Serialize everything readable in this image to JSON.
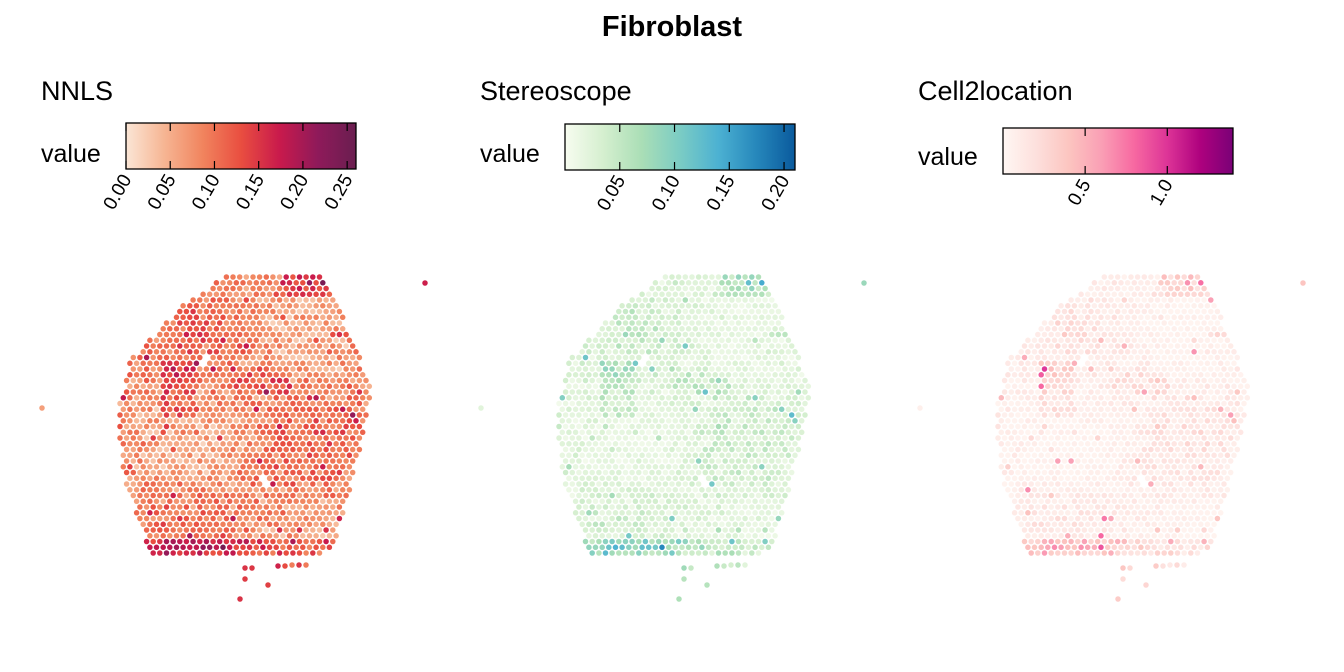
{
  "chart_data": {
    "type": "scatter",
    "subtype": "spatial-spot-map",
    "title": "Fibroblast",
    "panels": [
      {
        "name": "NNLS",
        "legend_title": "value",
        "scale_range": [
          0,
          0.26
        ],
        "ticks": [
          0,
          0.05,
          0.1,
          0.15,
          0.2,
          0.25
        ],
        "tick_labels": [
          "0.00",
          "0.05",
          "0.10",
          "0.15",
          "0.20",
          "0.25"
        ],
        "colormap": [
          "#fbe6d6",
          "#f6b593",
          "#f1845e",
          "#e94e40",
          "#c91a4c",
          "#8f1a5a",
          "#6a1e50"
        ]
      },
      {
        "name": "Stereoscope",
        "legend_title": "value",
        "scale_range": [
          0,
          0.21
        ],
        "ticks": [
          0.05,
          0.1,
          0.15,
          0.2
        ],
        "tick_labels": [
          "0.05",
          "0.10",
          "0.15",
          "0.20"
        ],
        "colormap": [
          "#f7fcf0",
          "#d5efcf",
          "#aadeb6",
          "#7bccc4",
          "#4cb1d2",
          "#2687bb",
          "#0a5a9d"
        ]
      },
      {
        "name": "Cell2location",
        "legend_title": "value",
        "scale_range": [
          0,
          1.4
        ],
        "ticks": [
          0.5,
          1.0
        ],
        "tick_labels": [
          "0.5",
          "1.0"
        ],
        "colormap": [
          "#fff7f3",
          "#fde0dd",
          "#fcc5c0",
          "#fa9fb5",
          "#f768a1",
          "#dd3497",
          "#ae017e",
          "#7a0177"
        ]
      }
    ],
    "grid": false,
    "legend_placement": "top"
  }
}
